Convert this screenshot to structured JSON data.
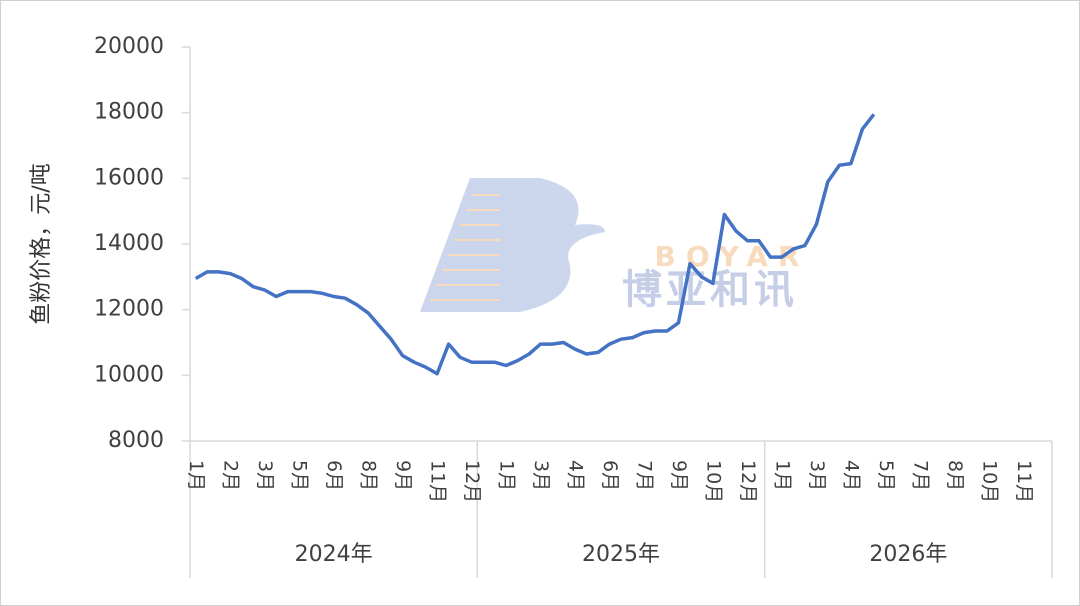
{
  "chart_data": {
    "type": "line",
    "y_axis_title": "鱼粉价格，元/吨",
    "watermark": {
      "brand": "BOYAR",
      "name": "博亚和讯"
    },
    "ylim": [
      8000,
      20000
    ],
    "yticks": [
      8000,
      10000,
      12000,
      14000,
      16000,
      18000,
      20000
    ],
    "groups": [
      {
        "label": "2024年",
        "count": 25
      },
      {
        "label": "2025年",
        "count": 25
      },
      {
        "label": "2026年",
        "count": 25
      }
    ],
    "categories": [
      "1月",
      null,
      null,
      "2月",
      null,
      null,
      "3月",
      null,
      null,
      "5月",
      null,
      null,
      "6月",
      null,
      null,
      "8月",
      null,
      null,
      "9月",
      null,
      null,
      "11月",
      null,
      null,
      "12月",
      null,
      null,
      "1月",
      null,
      null,
      "3月",
      null,
      null,
      "4月",
      null,
      null,
      "6月",
      null,
      null,
      "7月",
      null,
      null,
      "9月",
      null,
      null,
      "10月",
      null,
      null,
      "12月",
      null,
      null,
      "1月",
      null,
      null,
      "3月",
      null,
      null,
      "4月",
      null,
      null,
      "5月",
      null,
      null,
      "7月",
      null,
      null,
      "8月",
      null,
      null,
      "10月",
      null,
      null,
      "11月",
      null,
      null
    ],
    "series": [
      {
        "name": "鱼粉价格",
        "color": "#4472c4",
        "values": [
          12950,
          13150,
          13150,
          13100,
          12950,
          12700,
          12600,
          12400,
          12550,
          12550,
          12550,
          12500,
          12400,
          12350,
          12150,
          11900,
          11500,
          11100,
          10600,
          10400,
          10250,
          10050,
          10950,
          10550,
          10400,
          10400,
          10400,
          10300,
          10450,
          10650,
          10950,
          10950,
          11000,
          10800,
          10650,
          10700,
          10950,
          11100,
          11150,
          11300,
          11350,
          11350,
          11600,
          13400,
          13000,
          12800,
          14900,
          14400,
          14100,
          14100,
          13600,
          13600,
          13850,
          13950,
          14600,
          15900,
          16400,
          16450,
          17500,
          17950,
          null,
          null,
          null,
          null,
          null,
          null,
          null,
          null,
          null,
          null,
          null,
          null,
          null,
          null,
          null
        ]
      }
    ]
  }
}
